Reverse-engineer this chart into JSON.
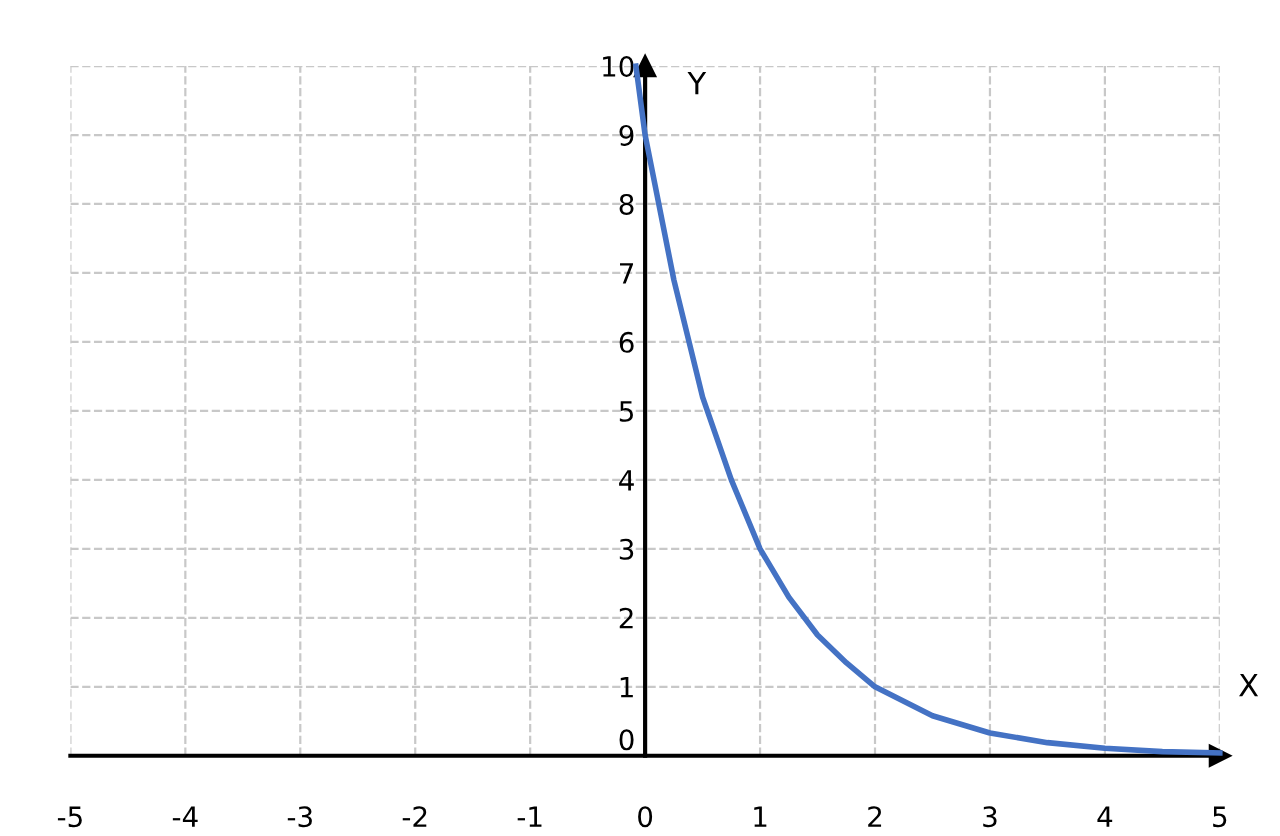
{
  "chart_data": {
    "type": "line",
    "xlabel": "X",
    "ylabel": "Y",
    "series": [
      {
        "color": "#4472c4",
        "x": [
          -0.08,
          0,
          0.25,
          0.5,
          0.75,
          1,
          1.25,
          1.5,
          1.75,
          2,
          2.5,
          3,
          3.5,
          4,
          4.5,
          5
        ],
        "values": [
          10,
          9,
          6.9,
          5.2,
          4,
          3,
          2.3,
          1.75,
          1.35,
          1,
          0.58,
          0.33,
          0.19,
          0.11,
          0.06,
          0.04
        ]
      }
    ],
    "xlim": [
      -5,
      5
    ],
    "ylim": [
      0,
      10
    ],
    "xticks": [
      -5,
      -4,
      -3,
      -2,
      -1,
      0,
      1,
      2,
      3,
      4,
      5
    ],
    "yticks": [
      0,
      1,
      2,
      3,
      4,
      5,
      6,
      7,
      8,
      9,
      10
    ],
    "grid": true,
    "marker": "none",
    "line_style": "solid"
  }
}
